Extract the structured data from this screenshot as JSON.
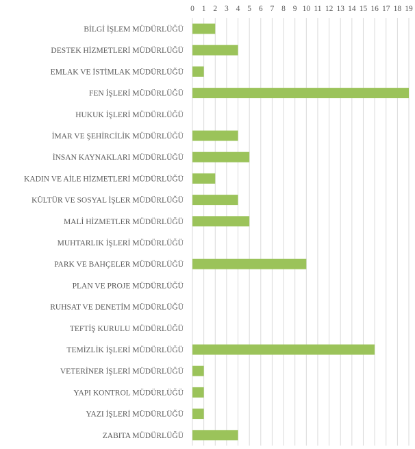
{
  "chart_data": {
    "type": "bar",
    "orientation": "horizontal",
    "title": "",
    "xlabel": "",
    "ylabel": "",
    "xlim": [
      0,
      19
    ],
    "x_ticks": [
      0,
      1,
      2,
      3,
      4,
      5,
      6,
      7,
      8,
      9,
      10,
      11,
      12,
      13,
      14,
      15,
      16,
      17,
      18,
      19
    ],
    "x_axis_position": "top",
    "grid": true,
    "legend": "none",
    "bar_color": "#9BC35A",
    "grid_color": "#D9D9D9",
    "categories": [
      "BİLGİ İŞLEM MÜDÜRLÜĞÜ",
      "DESTEK HİZMETLERİ MÜDÜRLÜĞÜ",
      "EMLAK VE İSTİMLAK MÜDÜRLÜĞÜ",
      "FEN İŞLERİ MÜDÜRLÜĞÜ",
      "HUKUK İŞLERİ MÜDÜRLÜĞÜ",
      "İMAR VE ŞEHİRCİLİK MÜDÜRLÜĞÜ",
      "İNSAN KAYNAKLARI MÜDÜRLÜĞÜ",
      "KADIN VE AİLE HİZMETLERİ MÜDÜRLÜĞÜ",
      "KÜLTÜR VE SOSYAL İŞLER MÜDÜRLÜĞÜ",
      "MALİ HİZMETLER MÜDÜRLÜĞÜ",
      "MUHTARLIK İŞLERİ MÜDÜRLÜĞÜ",
      "PARK VE BAHÇELER MÜDÜRLÜĞÜ",
      "PLAN VE PROJE MÜDÜRLÜĞÜ",
      "RUHSAT VE DENETİM MÜDÜRLÜĞÜ",
      "TEFTİŞ KURULU MÜDÜRLÜĞÜ",
      "TEMİZLİK İŞLERİ MÜDÜRLÜĞÜ",
      "VETERİNER İŞLERİ MÜDÜRLÜĞÜ",
      "YAPI KONTROL MÜDÜRLÜĞÜ",
      "YAZI İŞLERİ MÜDÜRLÜĞÜ",
      "ZABITA MÜDÜRLÜĞÜ"
    ],
    "values": [
      2,
      4,
      1,
      19,
      0,
      4,
      5,
      2,
      4,
      5,
      0,
      10,
      0,
      0,
      0,
      16,
      1,
      1,
      1,
      4
    ]
  }
}
